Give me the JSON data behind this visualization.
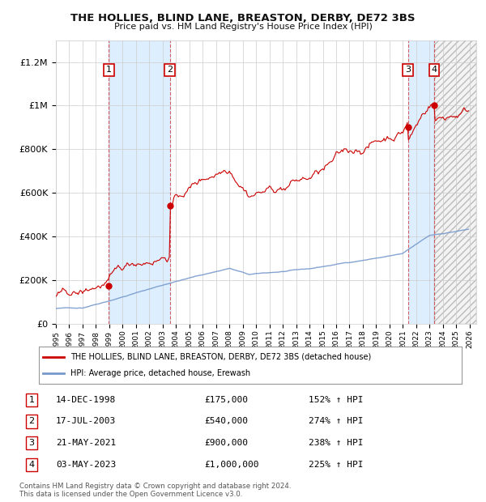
{
  "title": "THE HOLLIES, BLIND LANE, BREASTON, DERBY, DE72 3BS",
  "subtitle": "Price paid vs. HM Land Registry's House Price Index (HPI)",
  "sales": [
    {
      "label": "1",
      "date_num": 1998.96,
      "price": 175000,
      "hpi_pct": "152% ↑ HPI",
      "date_str": "14-DEC-1998"
    },
    {
      "label": "2",
      "date_num": 2003.54,
      "price": 540000,
      "hpi_pct": "274% ↑ HPI",
      "date_str": "17-JUL-2003"
    },
    {
      "label": "3",
      "date_num": 2021.38,
      "price": 900000,
      "hpi_pct": "238% ↑ HPI",
      "date_str": "21-MAY-2021"
    },
    {
      "label": "4",
      "date_num": 2023.34,
      "price": 1000000,
      "hpi_pct": "225% ↑ HPI",
      "date_str": "03-MAY-2023"
    }
  ],
  "xmin": 1995.0,
  "xmax": 2026.5,
  "ymin": 0,
  "ymax": 1300000,
  "yticks": [
    0,
    200000,
    400000,
    600000,
    800000,
    1000000,
    1200000
  ],
  "ytick_labels": [
    "£0",
    "£200K",
    "£400K",
    "£600K",
    "£800K",
    "£1M",
    "£1.2M"
  ],
  "hpi_line_color": "#7799cc",
  "price_line_color": "#cc0000",
  "sale_dot_color": "#cc0000",
  "shade_color": "#ddeeff",
  "legend_label_red": "THE HOLLIES, BLIND LANE, BREASTON, DERBY, DE72 3BS (detached house)",
  "legend_label_blue": "HPI: Average price, detached house, Erewash",
  "footer": "Contains HM Land Registry data © Crown copyright and database right 2024.\nThis data is licensed under the Open Government Licence v3.0.",
  "background_color": "#ffffff",
  "grid_color": "#cccccc"
}
